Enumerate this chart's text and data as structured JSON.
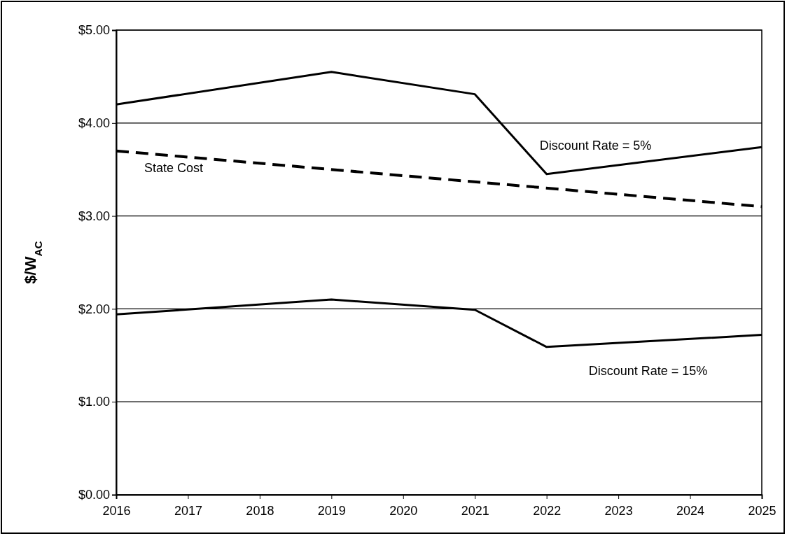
{
  "chart_data": {
    "type": "line",
    "ylabel": "$/W$_{AC}$",
    "xlim": [
      2016,
      2025
    ],
    "xticks": [
      2016,
      2017,
      2018,
      2019,
      2020,
      2021,
      2022,
      2023,
      2024,
      2025
    ],
    "ylim": [
      0,
      5
    ],
    "yticks": [
      {
        "value": 0,
        "label": "$0.00"
      },
      {
        "value": 1,
        "label": "$1.00"
      },
      {
        "value": 2,
        "label": "$2.00"
      },
      {
        "value": 3,
        "label": "$3.00"
      },
      {
        "value": 4,
        "label": "$4.00"
      },
      {
        "value": 5,
        "label": "$5.00"
      }
    ],
    "grid": "y",
    "legend": false,
    "marker": "none",
    "series": [
      {
        "name": "Discount Rate = 5%",
        "color": "#000000",
        "x": [
          2016,
          2019,
          2021,
          2022,
          2025
        ],
        "values": [
          4.2,
          4.55,
          4.31,
          3.45,
          3.74
        ]
      },
      {
        "name": "State Cost",
        "color": "#000000",
        "line_style": "dashed",
        "x": [
          2016,
          2025
        ],
        "values": [
          3.7,
          3.1
        ]
      },
      {
        "name": "Discount Rate = 15%",
        "color": "#000000",
        "x": [
          2016,
          2019,
          2021,
          2022,
          2025
        ],
        "values": [
          1.94,
          2.1,
          1.99,
          1.59,
          1.72
        ]
      }
    ]
  }
}
